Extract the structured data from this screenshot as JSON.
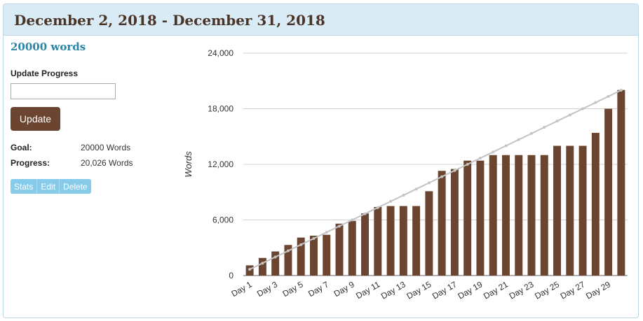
{
  "header": {
    "title": "December 2, 2018 - December 31, 2018"
  },
  "left": {
    "goal_heading": "20000 words",
    "update_label": "Update Progress",
    "input_value": "",
    "update_button": "Update",
    "goal_key": "Goal:",
    "goal_value": "20000 Words",
    "progress_key": "Progress:",
    "progress_value": "20,026 Words",
    "actions": [
      "Stats",
      "Edit",
      "Delete"
    ]
  },
  "colors": {
    "bar": "#6b4530",
    "target_line": "#c4c4c4",
    "accent": "#2a86a6",
    "button_blue": "#86ccea"
  },
  "chart_data": {
    "type": "bar",
    "ylabel": "Words",
    "ylim": [
      0,
      24000
    ],
    "yticks": [
      "0",
      "6,000",
      "12,000",
      "18,000",
      "24,000"
    ],
    "ytick_values": [
      0,
      6000,
      12000,
      18000,
      24000
    ],
    "categories": [
      "Day 1",
      "Day 2",
      "Day 3",
      "Day 4",
      "Day 5",
      "Day 6",
      "Day 7",
      "Day 8",
      "Day 9",
      "Day 10",
      "Day 11",
      "Day 12",
      "Day 13",
      "Day 14",
      "Day 15",
      "Day 16",
      "Day 17",
      "Day 18",
      "Day 19",
      "Day 20",
      "Day 21",
      "Day 22",
      "Day 23",
      "Day 24",
      "Day 25",
      "Day 26",
      "Day 27",
      "Day 28",
      "Day 29",
      "Day 30"
    ],
    "visible_x_labels": [
      "Day 1",
      "Day 3",
      "Day 5",
      "Day 7",
      "Day 9",
      "Day 11",
      "Day 13",
      "Day 15",
      "Day 17",
      "Day 19",
      "Day 21",
      "Day 23",
      "Day 25",
      "Day 27",
      "Day 29"
    ],
    "values": [
      1100,
      1900,
      2600,
      3300,
      4100,
      4300,
      4400,
      5600,
      5900,
      6700,
      7400,
      7500,
      7500,
      7500,
      9100,
      11300,
      11500,
      12400,
      12400,
      13000,
      13000,
      13000,
      13000,
      13000,
      14000,
      14000,
      14000,
      15400,
      18000,
      20026
    ],
    "target_line": {
      "start": 667,
      "end": 20000
    },
    "grid": true,
    "legend": "none"
  }
}
